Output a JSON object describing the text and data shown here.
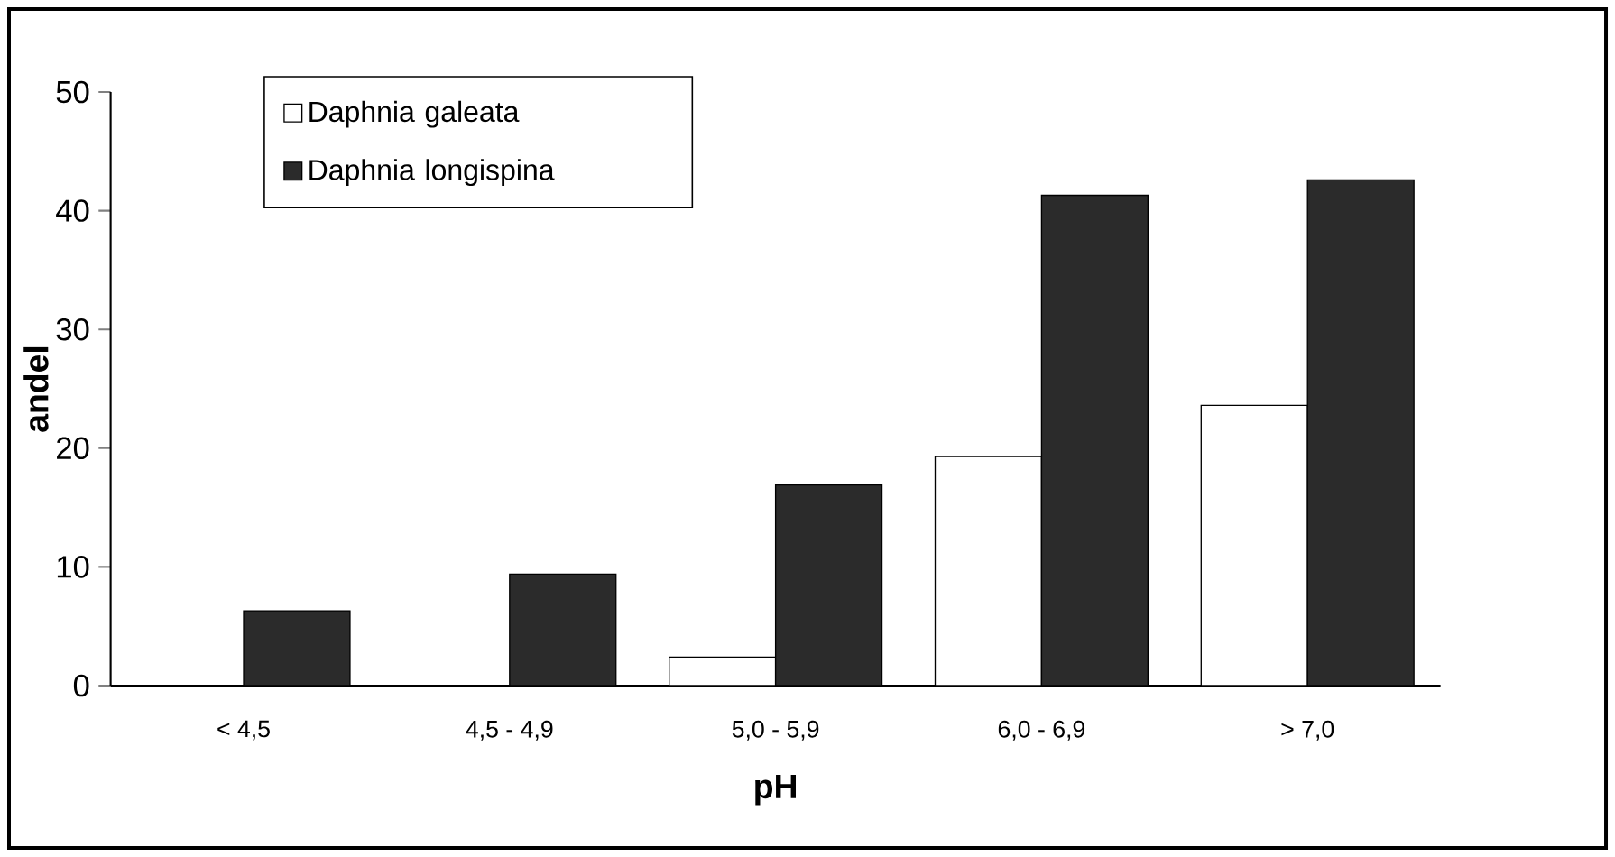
{
  "chart_data": {
    "type": "bar",
    "xlabel": "pH",
    "ylabel": "andel",
    "categories": [
      "< 4,5",
      "4,5 - 4,9",
      "5,0 - 5,9",
      "6,0 - 6,9",
      "> 7,0"
    ],
    "series": [
      {
        "name": "Daphnia galeata",
        "color": "#ffffff",
        "values": [
          null,
          null,
          2.4,
          19.3,
          23.6
        ]
      },
      {
        "name": "Daphnia longispina",
        "color": "#2b2b2b",
        "values": [
          6.3,
          9.4,
          16.9,
          41.3,
          42.6
        ]
      }
    ],
    "ylim": [
      0,
      50
    ],
    "yticks": [
      0,
      10,
      20,
      30,
      40,
      50
    ],
    "grid": false,
    "legend": "top left"
  }
}
